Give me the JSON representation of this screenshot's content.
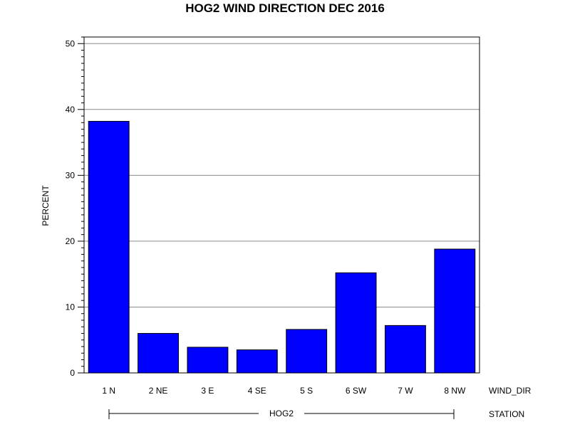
{
  "chart_data": {
    "type": "bar",
    "title": "HOG2 WIND DIRECTION DEC 2016",
    "ylabel": "PERCENT",
    "xlabel": "WIND_DIR",
    "group_label": "STATION",
    "group_value": "HOG2",
    "categories": [
      "1 N",
      "2 NE",
      "3 E",
      "4 SE",
      "5 S",
      "6 SW",
      "7 W",
      "8 NW"
    ],
    "values": [
      38.2,
      6.0,
      3.9,
      3.5,
      6.6,
      15.2,
      7.2,
      18.8
    ],
    "ylim": [
      0,
      51
    ],
    "yticks": [
      0,
      10,
      20,
      30,
      40,
      50
    ],
    "grid": true,
    "legend": "none",
    "bar_color": "#0000ff"
  }
}
